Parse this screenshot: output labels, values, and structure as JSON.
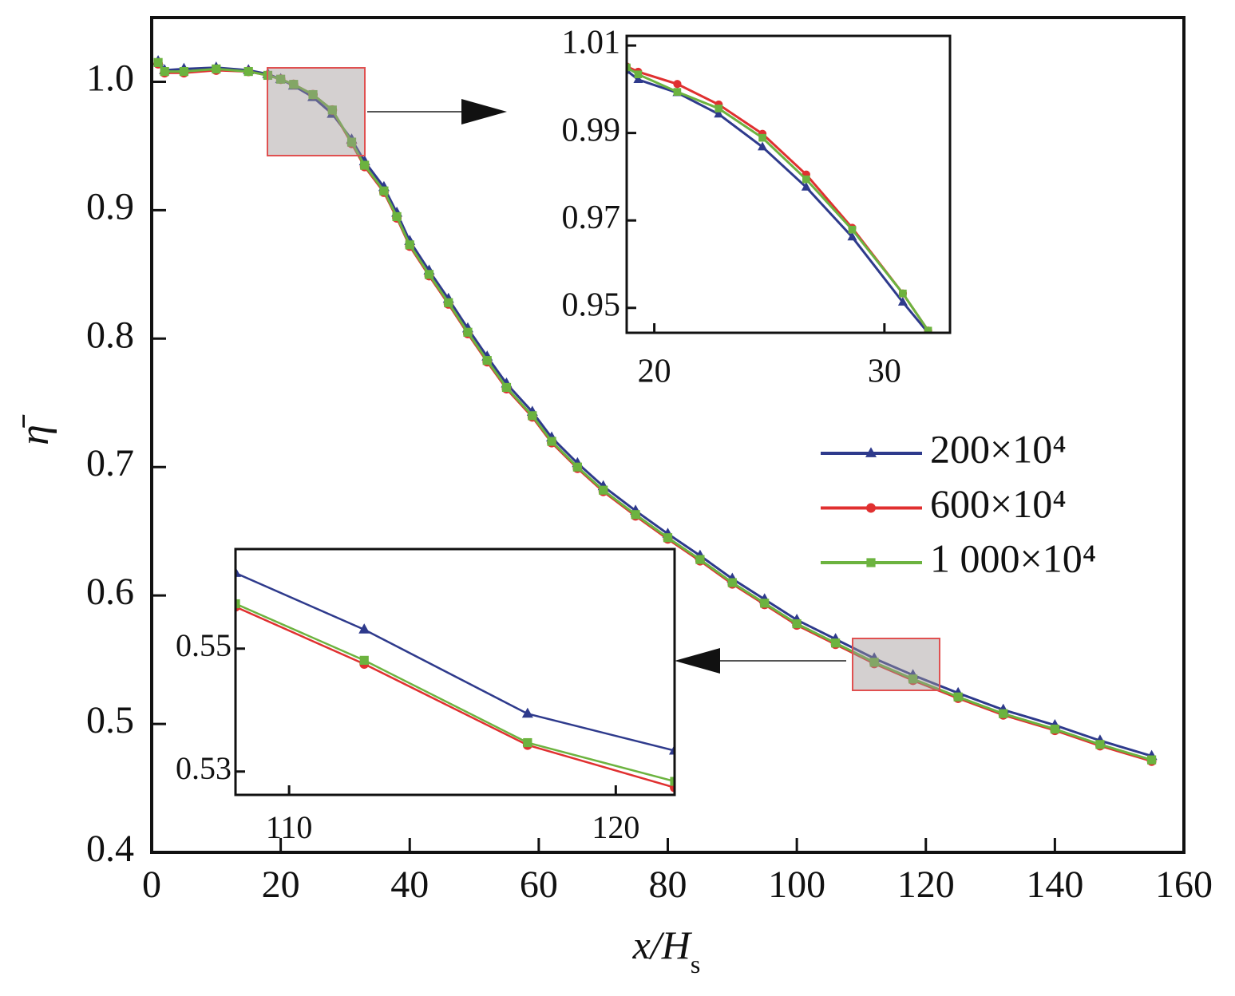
{
  "chart_data": [
    {
      "type": "line",
      "xlabel": "x/H",
      "xlabel_sub": "s",
      "ylabel": "η̄",
      "legend": "right",
      "xlim": [
        0,
        160
      ],
      "ylim": [
        0.4,
        1.05
      ],
      "xticks": [
        0,
        20,
        40,
        60,
        80,
        100,
        120,
        140,
        160
      ],
      "yticks": [
        0.4,
        0.5,
        0.6,
        0.7,
        0.8,
        0.9,
        {
          "value": 1,
          "label": "1.0"
        }
      ],
      "x": [
        1,
        2,
        5,
        10,
        15,
        18,
        20,
        22,
        25,
        28,
        31,
        33,
        36,
        38,
        40,
        43,
        46,
        49,
        52,
        55,
        59,
        62,
        66,
        70,
        75,
        80,
        85,
        90,
        95,
        100,
        106,
        112,
        118,
        125,
        132,
        140,
        147,
        155
      ],
      "series": [
        {
          "name": "200×10⁴",
          "color": "#2e3a8c",
          "marker": "triangle",
          "values": [
            1.016,
            1.009,
            1.01,
            1.011,
            1.009,
            1.006,
            1.002,
            0.997,
            0.988,
            0.975,
            0.955,
            0.938,
            0.918,
            0.898,
            0.876,
            0.853,
            0.831,
            0.808,
            0.786,
            0.765,
            0.743,
            0.723,
            0.703,
            0.685,
            0.666,
            0.648,
            0.631,
            0.613,
            0.597,
            0.581,
            0.566,
            0.551,
            0.538,
            0.524,
            0.511,
            0.499,
            0.487,
            0.475
          ]
        },
        {
          "name": "600×10⁴",
          "color": "#e03030",
          "marker": "circle",
          "values": [
            1.014,
            1.007,
            1.007,
            1.009,
            1.008,
            1.005,
            1.002,
            0.998,
            0.99,
            0.978,
            0.952,
            0.934,
            0.914,
            0.894,
            0.872,
            0.849,
            0.827,
            0.804,
            0.782,
            0.761,
            0.739,
            0.719,
            0.699,
            0.681,
            0.662,
            0.644,
            0.627,
            0.609,
            0.593,
            0.577,
            0.562,
            0.547,
            0.534,
            0.52,
            0.507,
            0.495,
            0.483,
            0.471
          ]
        },
        {
          "name": "1 000×10⁴",
          "color": "#6cb33f",
          "marker": "square",
          "values": [
            1.015,
            1.008,
            1.008,
            1.01,
            1.008,
            1.005,
            1.002,
            0.998,
            0.99,
            0.978,
            0.953,
            0.935,
            0.915,
            0.895,
            0.873,
            0.85,
            0.828,
            0.805,
            0.783,
            0.762,
            0.74,
            0.72,
            0.7,
            0.682,
            0.663,
            0.645,
            0.628,
            0.61,
            0.594,
            0.578,
            0.563,
            0.548,
            0.535,
            0.521,
            0.508,
            0.496,
            0.484,
            0.472
          ]
        }
      ]
    },
    {
      "type": "line",
      "xlim": [
        18.8,
        32.85
      ],
      "ylim": [
        0.9443,
        1.0122
      ],
      "xticks": [
        20,
        30
      ],
      "yticks": [
        0.95,
        0.97,
        0.99,
        1.01
      ],
      "x": [
        18.8,
        19.3,
        21,
        22.8,
        24.7,
        26.6,
        28.6,
        30.8,
        31.9
      ],
      "series": [
        {
          "color": "#2e3a8c",
          "marker": "triangle",
          "values": [
            1.0043,
            1.0022,
            0.9992,
            0.9943,
            0.9868,
            0.9776,
            0.9662,
            0.9513,
            0.9443
          ]
        },
        {
          "color": "#e03030",
          "marker": "circle",
          "values": [
            1.0052,
            1.004,
            1.0012,
            0.9965,
            0.9898,
            0.9805,
            0.9683,
            0.9533,
            0.9448
          ]
        },
        {
          "color": "#6cb33f",
          "marker": "square",
          "values": [
            1.005,
            1.0034,
            0.9994,
            0.9956,
            0.9889,
            0.9794,
            0.9679,
            0.9533,
            0.9448
          ]
        }
      ]
    },
    {
      "type": "line",
      "xlim": [
        108.36,
        121.8
      ],
      "ylim": [
        0.5262,
        0.5662
      ],
      "xticks": [
        110,
        120
      ],
      "yticks": [
        0.53,
        0.55
      ],
      "x": [
        108.36,
        112.3,
        117.3,
        121.8
      ],
      "series": [
        {
          "color": "#2e3a8c",
          "marker": "triangle",
          "values": [
            0.5623,
            0.5531,
            0.5394,
            0.5334
          ]
        },
        {
          "color": "#e03030",
          "marker": "circle",
          "values": [
            0.5568,
            0.5475,
            0.5343,
            0.5274
          ]
        },
        {
          "color": "#6cb33f",
          "marker": "square",
          "values": [
            0.5573,
            0.5481,
            0.5347,
            0.5284
          ]
        }
      ]
    }
  ]
}
